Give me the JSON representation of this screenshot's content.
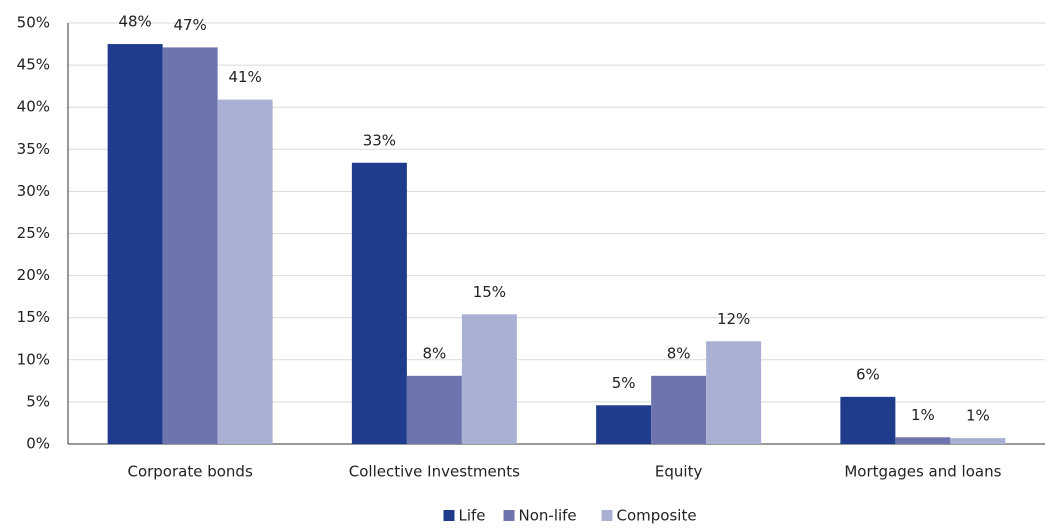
{
  "chart_data": {
    "type": "bar",
    "categories": [
      "Corporate bonds",
      "Collective Investments",
      "Equity",
      "Mortgages and loans"
    ],
    "series": [
      {
        "name": "Life",
        "color": "#1f3c8c",
        "values": [
          47.5,
          33.4,
          4.6,
          5.6
        ],
        "value_labels": [
          "48%",
          "33%",
          "5%",
          "6%"
        ]
      },
      {
        "name": "Non-life",
        "color": "#6e74ae",
        "values": [
          47.1,
          8.1,
          8.1,
          0.8
        ],
        "value_labels": [
          "47%",
          "8%",
          "8%",
          "1%"
        ]
      },
      {
        "name": "Composite",
        "color": "#aab0d4",
        "values": [
          40.9,
          15.4,
          12.2,
          0.7
        ],
        "value_labels": [
          "41%",
          "15%",
          "12%",
          "1%"
        ]
      }
    ],
    "ylim": [
      0,
      50
    ],
    "yticks": [
      {
        "value": 0,
        "label": "0%"
      },
      {
        "value": 5,
        "label": "5%"
      },
      {
        "value": 10,
        "label": "10%"
      },
      {
        "value": 15,
        "label": "15%"
      },
      {
        "value": 20,
        "label": "20%"
      },
      {
        "value": 25,
        "label": "25%"
      },
      {
        "value": 30,
        "label": "30%"
      },
      {
        "value": 35,
        "label": "35%"
      },
      {
        "value": 40,
        "label": "40%"
      },
      {
        "value": 45,
        "label": "45%"
      },
      {
        "value": 50,
        "label": "50%"
      }
    ],
    "grid": true
  }
}
